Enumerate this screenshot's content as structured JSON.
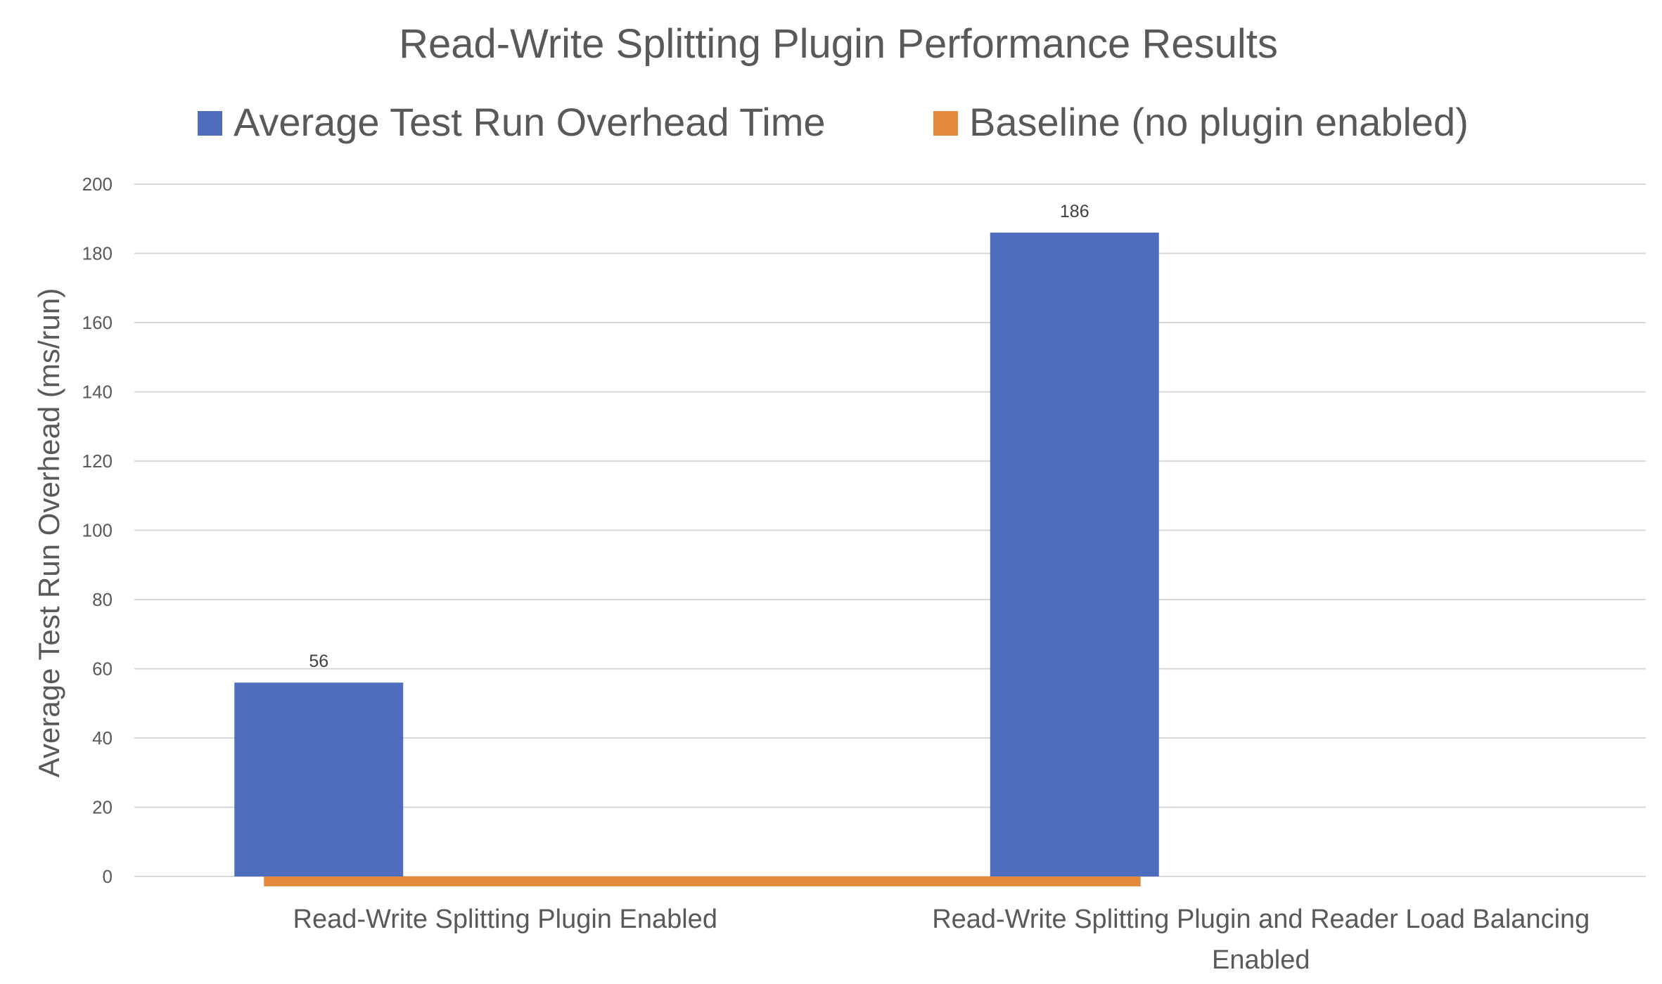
{
  "chart_data": {
    "type": "bar",
    "title": "Read-Write Splitting Plugin Performance Results",
    "ylabel": "Average Test Run Overhead (ms/run)",
    "xlabel": "",
    "ylim": [
      0,
      200
    ],
    "yticks": [
      0,
      20,
      40,
      60,
      80,
      100,
      120,
      140,
      160,
      180,
      200
    ],
    "categories": [
      [
        "Read-Write Splitting Plugin Enabled"
      ],
      [
        "Read-Write Splitting Plugin and Reader Load Balancing",
        "Enabled"
      ]
    ],
    "series": [
      {
        "name": "Average Test Run Overhead Time",
        "color": "#4E6DBF",
        "values": [
          56,
          186
        ],
        "labels": [
          "56",
          "186"
        ],
        "style": "bar"
      },
      {
        "name": "Baseline (no plugin enabled)",
        "color": "#E58A3B",
        "values": [
          0,
          0
        ],
        "labels": [],
        "style": "baseline"
      }
    ],
    "grid": true,
    "legend_position": "top"
  }
}
